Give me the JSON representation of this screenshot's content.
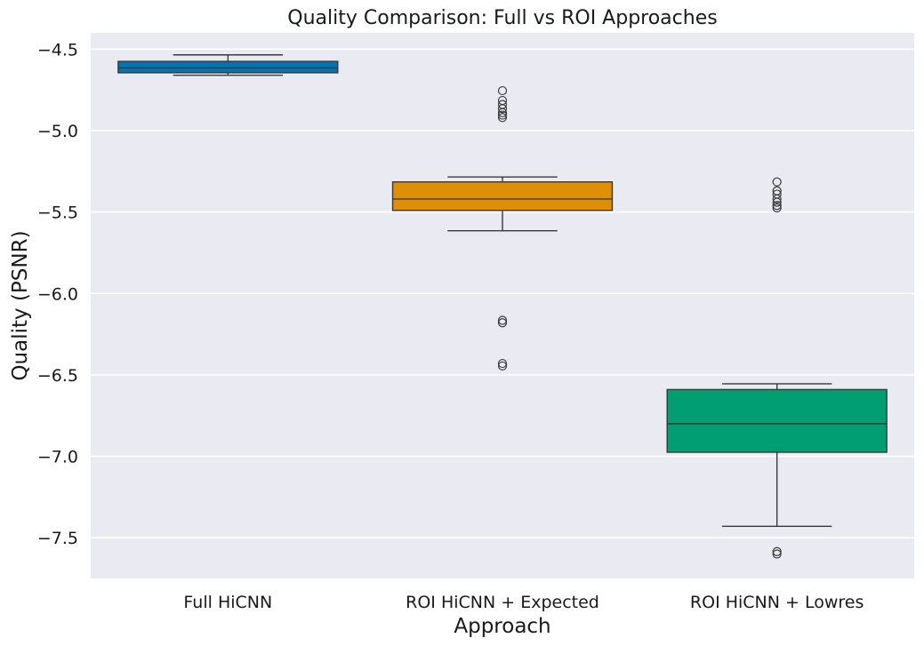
{
  "chart_data": {
    "type": "box",
    "title": "Quality Comparison: Full vs ROI Approaches",
    "xlabel": "Approach",
    "ylabel": "Quality (PSNR)",
    "ylim": [
      -7.75,
      -4.4
    ],
    "yticks": [
      -4.5,
      -5.0,
      -5.5,
      -6.0,
      -6.5,
      -7.0,
      -7.5
    ],
    "ytick_labels": [
      "−4.5",
      "−5.0",
      "−5.5",
      "−6.0",
      "−6.5",
      "−7.0",
      "−7.5"
    ],
    "categories": [
      "Full HiCNN",
      "ROI HiCNN + Expected",
      "ROI HiCNN + Lowres"
    ],
    "grid": true,
    "background": "#eaeaf2",
    "boxes": [
      {
        "category": "Full HiCNN",
        "color": "#0173b2",
        "whisker_low": -4.66,
        "q1": -4.645,
        "median": -4.615,
        "q3": -4.575,
        "whisker_high": -4.535,
        "outliers": []
      },
      {
        "category": "ROI HiCNN + Expected",
        "color": "#de8f05",
        "whisker_low": -5.615,
        "q1": -5.49,
        "median": -5.42,
        "q3": -5.315,
        "whisker_high": -5.285,
        "outliers": [
          -4.755,
          -4.815,
          -4.84,
          -4.865,
          -4.89,
          -4.905,
          -4.92,
          -6.165,
          -6.18,
          -6.43,
          -6.445
        ]
      },
      {
        "category": "ROI HiCNN + Lowres",
        "color": "#029e73",
        "whisker_low": -7.43,
        "q1": -6.975,
        "median": -6.8,
        "q3": -6.59,
        "whisker_high": -6.555,
        "outliers": [
          -5.315,
          -5.37,
          -5.39,
          -5.42,
          -5.44,
          -5.46,
          -5.475,
          -7.585,
          -7.6
        ]
      }
    ]
  }
}
